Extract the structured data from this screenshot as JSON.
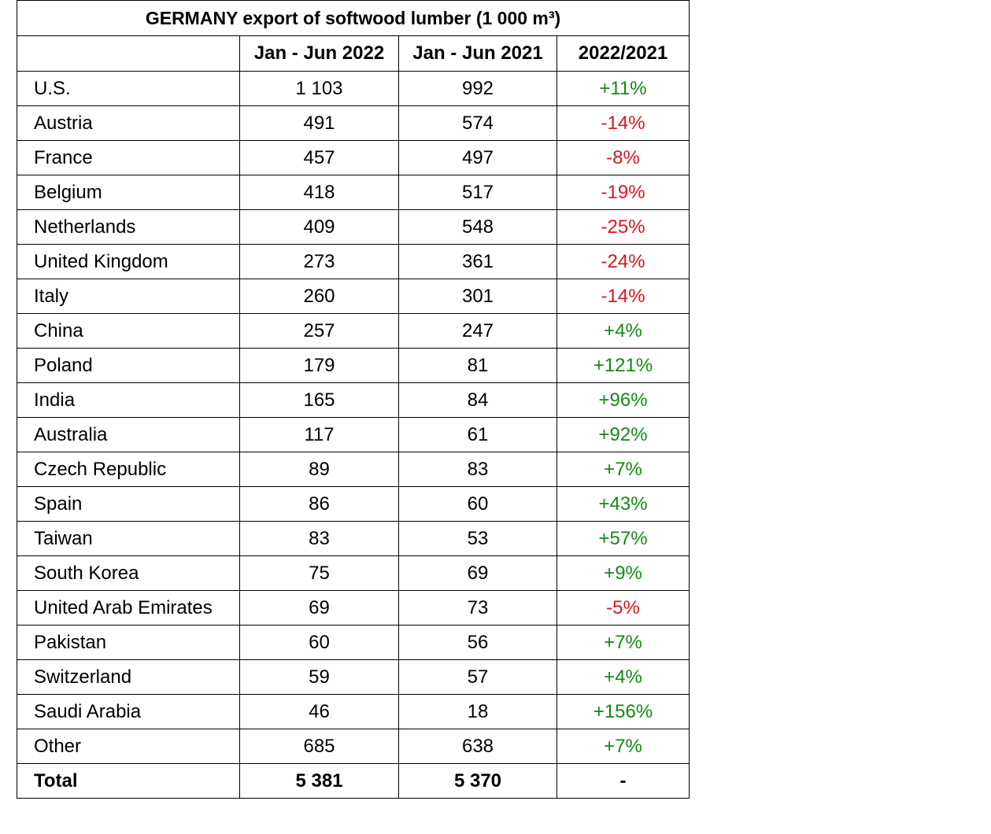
{
  "title": "GERMANY export of softwood lumber (1 000 m³)",
  "headers": [
    "",
    "Jan - Jun 2022",
    "Jan - Jun 2021",
    "2022/2021"
  ],
  "colors": {
    "positive": "#138a13",
    "negative": "#e0141e"
  },
  "rows": [
    {
      "country": "U.S.",
      "y2022": "1 103",
      "y2021": "992",
      "change": "+11%"
    },
    {
      "country": "Austria",
      "y2022": "491",
      "y2021": "574",
      "change": "-14%"
    },
    {
      "country": "France",
      "y2022": "457",
      "y2021": "497",
      "change": "-8%"
    },
    {
      "country": "Belgium",
      "y2022": "418",
      "y2021": "517",
      "change": "-19%"
    },
    {
      "country": "Netherlands",
      "y2022": "409",
      "y2021": "548",
      "change": "-25%"
    },
    {
      "country": "United Kingdom",
      "y2022": "273",
      "y2021": "361",
      "change": "-24%"
    },
    {
      "country": "Italy",
      "y2022": "260",
      "y2021": "301",
      "change": "-14%"
    },
    {
      "country": "China",
      "y2022": "257",
      "y2021": "247",
      "change": "+4%"
    },
    {
      "country": "Poland",
      "y2022": "179",
      "y2021": "81",
      "change": "+121%"
    },
    {
      "country": "India",
      "y2022": "165",
      "y2021": "84",
      "change": "+96%"
    },
    {
      "country": "Australia",
      "y2022": "117",
      "y2021": "61",
      "change": "+92%"
    },
    {
      "country": "Czech Republic",
      "y2022": "89",
      "y2021": "83",
      "change": "+7%"
    },
    {
      "country": "Spain",
      "y2022": "86",
      "y2021": "60",
      "change": "+43%"
    },
    {
      "country": "Taiwan",
      "y2022": "83",
      "y2021": "53",
      "change": "+57%"
    },
    {
      "country": "South Korea",
      "y2022": "75",
      "y2021": "69",
      "change": "+9%"
    },
    {
      "country": "United Arab Emirates",
      "y2022": "69",
      "y2021": "73",
      "change": "-5%"
    },
    {
      "country": "Pakistan",
      "y2022": "60",
      "y2021": "56",
      "change": "+7%"
    },
    {
      "country": "Switzerland",
      "y2022": "59",
      "y2021": "57",
      "change": "+4%"
    },
    {
      "country": "Saudi Arabia",
      "y2022": "46",
      "y2021": "18",
      "change": "+156%"
    },
    {
      "country": "Other",
      "y2022": "685",
      "y2021": "638",
      "change": "+7%"
    }
  ],
  "total": {
    "label": "Total",
    "y2022": "5 381",
    "y2021": "5 370",
    "change": "-"
  }
}
